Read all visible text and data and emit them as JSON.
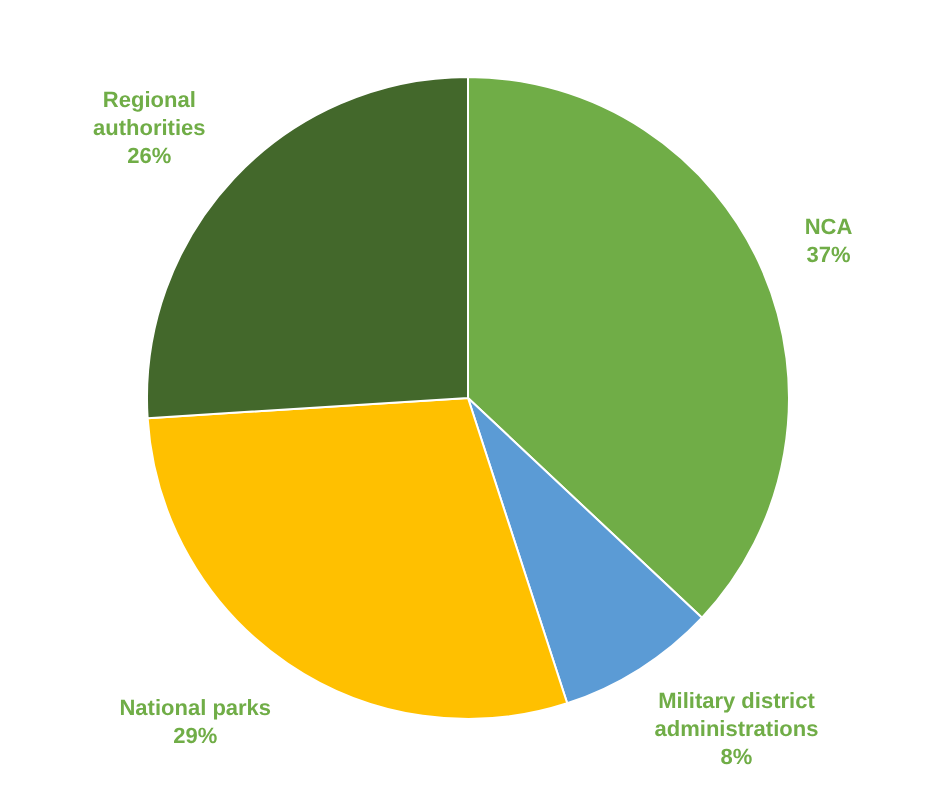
{
  "chart_data": {
    "type": "pie",
    "categories": [
      "NCA",
      "Military district administrations",
      "National parks",
      "Regional authorities"
    ],
    "values": [
      37,
      8,
      29,
      26
    ],
    "colors": [
      "#70ad47",
      "#5b9bd5",
      "#ffc000",
      "#43682b"
    ],
    "value_labels": [
      "37%",
      "8%",
      "29%",
      "26%"
    ],
    "legend": false
  }
}
